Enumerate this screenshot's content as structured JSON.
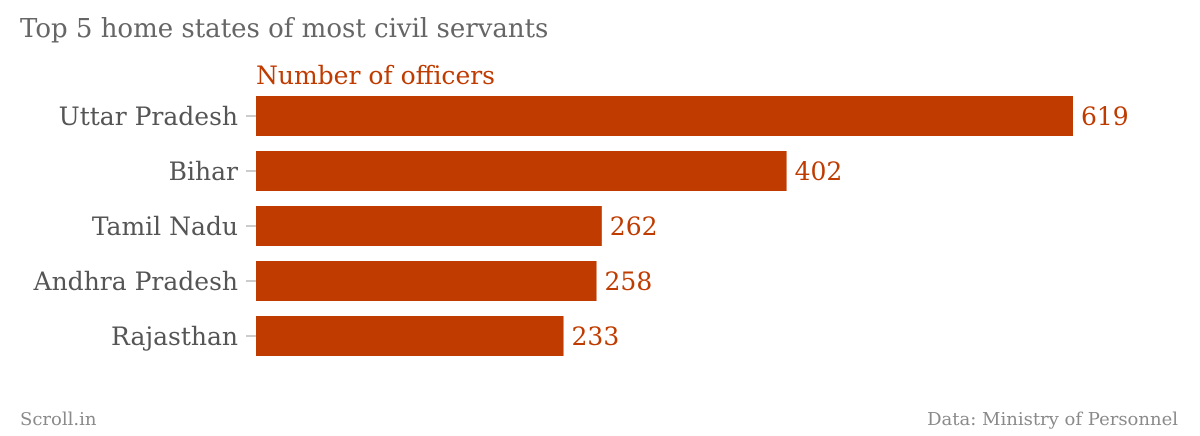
{
  "title": "Top 5 home states of most civil servants",
  "footer": {
    "brand": "Scroll.in",
    "source": "Data: Ministry of Personnel"
  },
  "colors": {
    "bar": "#bf3b00",
    "series_label": "#bf3b00",
    "category_label": "#555555",
    "tick": "#cccccc"
  },
  "chart_data": {
    "type": "bar",
    "orientation": "horizontal",
    "categories": [
      "Uttar Pradesh",
      "Bihar",
      "Tamil Nadu",
      "Andhra Pradesh",
      "Rajasthan"
    ],
    "series": [
      {
        "name": "Number of officers",
        "values": [
          619,
          402,
          262,
          258,
          233
        ]
      }
    ],
    "data_labels": [
      "619",
      "402",
      "262",
      "258",
      "233"
    ],
    "xlim": [
      0,
      619
    ],
    "grid": false,
    "legend": "none"
  }
}
